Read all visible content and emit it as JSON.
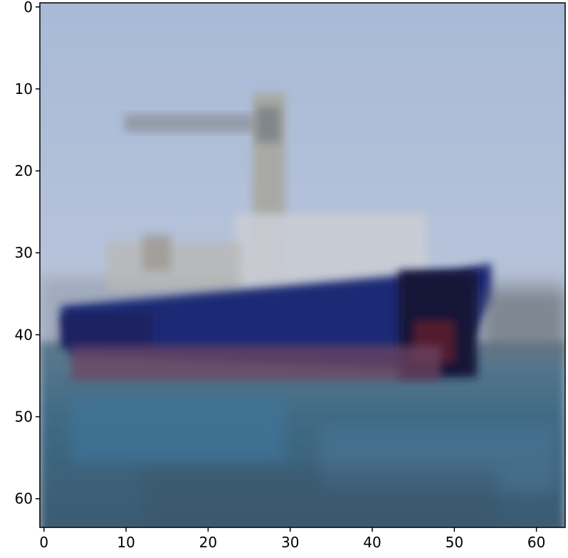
{
  "image": {
    "description_colors": {
      "sky_top": "#a9bbd8",
      "sky_bottom": "#b6c3da",
      "hull_blue": "#1f2a73",
      "hull_dark": "#14163a",
      "hull_red": "#6a3a55",
      "superstructure": "#c9ccd3",
      "mast": "#a7a79f",
      "sea_top": "#5a7a92",
      "sea_bottom": "#35546c"
    }
  },
  "axes": {
    "xlim": [
      -0.5,
      63.5
    ],
    "ylim": [
      63.5,
      -0.5
    ],
    "x_ticks": [
      "0",
      "10",
      "20",
      "30",
      "40",
      "50",
      "60"
    ],
    "y_ticks": [
      "0",
      "10",
      "20",
      "30",
      "40",
      "50",
      "60"
    ]
  }
}
